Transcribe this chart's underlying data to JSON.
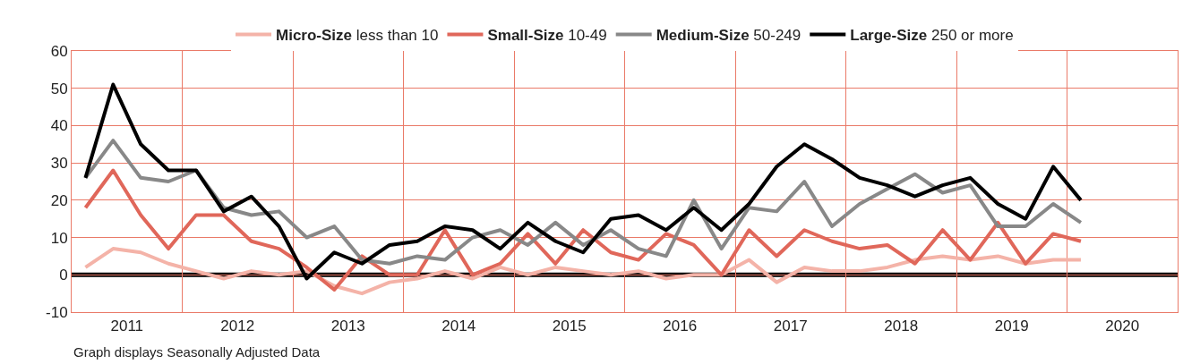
{
  "chart_data": {
    "type": "line",
    "x": [
      2011.125,
      2011.375,
      2011.625,
      2011.875,
      2012.125,
      2012.375,
      2012.625,
      2012.875,
      2013.125,
      2013.375,
      2013.625,
      2013.875,
      2014.125,
      2014.375,
      2014.625,
      2014.875,
      2015.125,
      2015.375,
      2015.625,
      2015.875,
      2016.125,
      2016.375,
      2016.625,
      2016.875,
      2017.125,
      2017.375,
      2017.625,
      2017.875,
      2018.125,
      2018.375,
      2018.625,
      2018.875,
      2019.125,
      2019.375,
      2019.625,
      2019.875,
      2020.125
    ],
    "series": [
      {
        "name": "Micro-Size less than 10",
        "color": "#f4b3a8",
        "values": [
          2,
          7,
          6,
          3,
          1,
          -1,
          1,
          0,
          1,
          -3,
          -5,
          -2,
          -1,
          1,
          -1,
          2,
          0,
          2,
          1,
          0,
          1,
          -1,
          0,
          0,
          4,
          -2,
          2,
          1,
          1,
          2,
          4,
          5,
          4,
          5,
          3,
          4,
          4
        ]
      },
      {
        "name": "Small-Size 10-49",
        "color": "#e0675a",
        "values": [
          18,
          28,
          16,
          7,
          16,
          16,
          9,
          7,
          2,
          -4,
          5,
          0,
          0,
          12,
          0,
          3,
          11,
          3,
          12,
          6,
          4,
          11,
          8,
          0,
          12,
          5,
          12,
          9,
          7,
          8,
          3,
          12,
          4,
          14,
          3,
          11,
          9
        ]
      },
      {
        "name": "Medium-Size 50-249",
        "color": "#888888",
        "values": [
          26,
          36,
          26,
          25,
          28,
          18,
          16,
          17,
          10,
          13,
          4,
          3,
          5,
          4,
          10,
          12,
          8,
          14,
          8,
          12,
          7,
          5,
          20,
          7,
          18,
          17,
          25,
          13,
          19,
          23,
          27,
          22,
          24,
          13,
          13,
          19,
          14
        ]
      },
      {
        "name": "Large-Size 250 or more",
        "color": "#000000",
        "values": [
          26,
          51,
          35,
          28,
          28,
          17,
          21,
          13,
          -1,
          6,
          3,
          8,
          9,
          13,
          12,
          7,
          14,
          9,
          6,
          15,
          16,
          12,
          18,
          12,
          19,
          29,
          35,
          31,
          26,
          24,
          21,
          24,
          26,
          19,
          15,
          29,
          20
        ]
      }
    ],
    "xlim": [
      2011,
      2021
    ],
    "xticks": [
      {
        "value": 2011,
        "label": null
      },
      {
        "value": 2011.5,
        "label": "2011"
      },
      {
        "value": 2012,
        "label": null
      },
      {
        "value": 2012.5,
        "label": "2012"
      },
      {
        "value": 2013,
        "label": null
      },
      {
        "value": 2013.5,
        "label": "2013"
      },
      {
        "value": 2014,
        "label": null
      },
      {
        "value": 2014.5,
        "label": "2014"
      },
      {
        "value": 2015,
        "label": null
      },
      {
        "value": 2015.5,
        "label": "2015"
      },
      {
        "value": 2016,
        "label": null
      },
      {
        "value": 2016.5,
        "label": "2016"
      },
      {
        "value": 2017,
        "label": null
      },
      {
        "value": 2017.5,
        "label": "2017"
      },
      {
        "value": 2018,
        "label": null
      },
      {
        "value": 2018.5,
        "label": "2018"
      },
      {
        "value": 2019,
        "label": null
      },
      {
        "value": 2019.5,
        "label": "2019"
      },
      {
        "value": 2020,
        "label": null
      },
      {
        "value": 2020.5,
        "label": "2020"
      },
      {
        "value": 2021,
        "label": null
      }
    ],
    "ylim": [
      -10,
      60
    ],
    "yticks": [
      -10,
      0,
      10,
      20,
      30,
      40,
      50,
      60
    ],
    "ref_lines": [
      {
        "axis": "y",
        "value": 0,
        "color": "#000000"
      }
    ],
    "grid": true,
    "legend": "top",
    "marker": "none",
    "line_style": "solid",
    "annotations": [
      "Graph displays Seasonally Adjusted Data"
    ]
  }
}
